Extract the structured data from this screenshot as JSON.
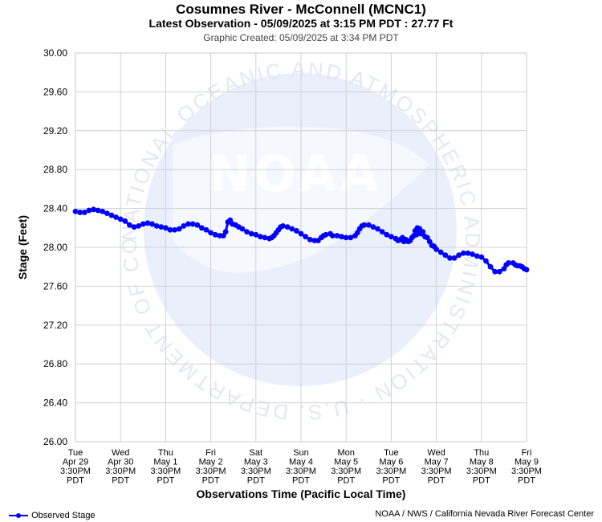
{
  "header": {
    "title": "Cosumnes River - McConnell (MCNC1)",
    "latest": "Latest Observation - 05/09/2025 at 3:15 PM PDT : 27.77 Ft",
    "created": "Graphic Created: 05/09/2025 at 3:34 PM PDT"
  },
  "watermark": {
    "logo_text": "NOAA",
    "ring_text": "NATIONAL OCEANIC AND ATMOSPHERIC ADMINISTRATION · U.S. DEPARTMENT OF COMMERCE"
  },
  "legend": {
    "label": "Observed Stage",
    "color": "#0000ff"
  },
  "credit": "NOAA / NWS / California Nevada River Forecast Center",
  "chart_data": {
    "type": "line",
    "ylabel": "Stage (Feet)",
    "xlabel": "Observations Time (Pacific Local Time)",
    "ylim": [
      26.0,
      30.0
    ],
    "yticks": [
      "26.00",
      "26.40",
      "26.80",
      "27.20",
      "27.60",
      "28.00",
      "28.40",
      "28.80",
      "29.20",
      "29.60",
      "30.00"
    ],
    "xlim_days": [
      0,
      10
    ],
    "xticks": [
      [
        "Tue",
        "Apr 29",
        "3:30PM",
        "PDT"
      ],
      [
        "Wed",
        "Apr 30",
        "3:30PM",
        "PDT"
      ],
      [
        "Thu",
        "May 1",
        "3:30PM",
        "PDT"
      ],
      [
        "Fri",
        "May 2",
        "3:30PM",
        "PDT"
      ],
      [
        "Sat",
        "May 3",
        "3:30PM",
        "PDT"
      ],
      [
        "Sun",
        "May 4",
        "3:30PM",
        "PDT"
      ],
      [
        "Mon",
        "May 5",
        "3:30PM",
        "PDT"
      ],
      [
        "Tue",
        "May 6",
        "3:30PM",
        "PDT"
      ],
      [
        "Wed",
        "May 7",
        "3:30PM",
        "PDT"
      ],
      [
        "Thu",
        "May 8",
        "3:30PM",
        "PDT"
      ],
      [
        "Fri",
        "May 9",
        "3:30PM",
        "PDT"
      ]
    ],
    "grid": true,
    "series": [
      {
        "name": "Observed Stage",
        "color": "#0000ff",
        "points": [
          [
            0.0,
            28.37
          ],
          [
            0.1,
            28.36
          ],
          [
            0.2,
            28.36
          ],
          [
            0.3,
            28.38
          ],
          [
            0.4,
            28.39
          ],
          [
            0.5,
            28.38
          ],
          [
            0.6,
            28.37
          ],
          [
            0.7,
            28.35
          ],
          [
            0.8,
            28.33
          ],
          [
            0.9,
            28.31
          ],
          [
            1.0,
            28.29
          ],
          [
            1.1,
            28.27
          ],
          [
            1.2,
            28.23
          ],
          [
            1.3,
            28.21
          ],
          [
            1.4,
            28.22
          ],
          [
            1.5,
            28.24
          ],
          [
            1.6,
            28.25
          ],
          [
            1.7,
            28.24
          ],
          [
            1.8,
            28.22
          ],
          [
            1.9,
            28.21
          ],
          [
            2.0,
            28.2
          ],
          [
            2.1,
            28.18
          ],
          [
            2.2,
            28.18
          ],
          [
            2.3,
            28.19
          ],
          [
            2.4,
            28.22
          ],
          [
            2.5,
            28.24
          ],
          [
            2.6,
            28.24
          ],
          [
            2.7,
            28.23
          ],
          [
            2.8,
            28.2
          ],
          [
            2.9,
            28.18
          ],
          [
            3.0,
            28.15
          ],
          [
            3.1,
            28.13
          ],
          [
            3.2,
            28.12
          ],
          [
            3.28,
            28.12
          ],
          [
            3.33,
            28.16
          ],
          [
            3.38,
            28.26
          ],
          [
            3.43,
            28.28
          ],
          [
            3.48,
            28.24
          ],
          [
            3.55,
            28.23
          ],
          [
            3.62,
            28.21
          ],
          [
            3.7,
            28.19
          ],
          [
            3.8,
            28.16
          ],
          [
            3.9,
            28.14
          ],
          [
            4.0,
            28.13
          ],
          [
            4.1,
            28.11
          ],
          [
            4.2,
            28.1
          ],
          [
            4.3,
            28.09
          ],
          [
            4.35,
            28.1
          ],
          [
            4.4,
            28.12
          ],
          [
            4.45,
            28.15
          ],
          [
            4.5,
            28.18
          ],
          [
            4.55,
            28.21
          ],
          [
            4.6,
            28.22
          ],
          [
            4.7,
            28.21
          ],
          [
            4.8,
            28.19
          ],
          [
            4.9,
            28.17
          ],
          [
            5.0,
            28.14
          ],
          [
            5.1,
            28.11
          ],
          [
            5.2,
            28.08
          ],
          [
            5.3,
            28.07
          ],
          [
            5.38,
            28.07
          ],
          [
            5.45,
            28.1
          ],
          [
            5.5,
            28.12
          ],
          [
            5.55,
            28.13
          ],
          [
            5.65,
            28.14
          ],
          [
            5.7,
            28.12
          ],
          [
            5.8,
            28.12
          ],
          [
            5.9,
            28.11
          ],
          [
            6.0,
            28.1
          ],
          [
            6.1,
            28.1
          ],
          [
            6.2,
            28.12
          ],
          [
            6.25,
            28.15
          ],
          [
            6.3,
            28.19
          ],
          [
            6.35,
            28.22
          ],
          [
            6.4,
            28.23
          ],
          [
            6.5,
            28.23
          ],
          [
            6.6,
            28.21
          ],
          [
            6.7,
            28.19
          ],
          [
            6.8,
            28.16
          ],
          [
            6.9,
            28.13
          ],
          [
            7.0,
            28.11
          ],
          [
            7.1,
            28.09
          ],
          [
            7.15,
            28.07
          ],
          [
            7.2,
            28.08
          ],
          [
            7.25,
            28.1
          ],
          [
            7.28,
            28.06
          ],
          [
            7.32,
            28.08
          ],
          [
            7.38,
            28.06
          ],
          [
            7.42,
            28.07
          ],
          [
            7.46,
            28.1
          ],
          [
            7.5,
            28.12
          ],
          [
            7.53,
            28.17
          ],
          [
            7.56,
            28.13
          ],
          [
            7.58,
            28.2
          ],
          [
            7.6,
            28.16
          ],
          [
            7.63,
            28.19
          ],
          [
            7.66,
            28.14
          ],
          [
            7.7,
            28.16
          ],
          [
            7.75,
            28.11
          ],
          [
            7.8,
            28.1
          ],
          [
            7.85,
            28.06
          ],
          [
            7.9,
            28.02
          ],
          [
            7.95,
            28.01
          ],
          [
            8.0,
            27.98
          ],
          [
            8.1,
            27.95
          ],
          [
            8.2,
            27.92
          ],
          [
            8.3,
            27.89
          ],
          [
            8.4,
            27.89
          ],
          [
            8.5,
            27.92
          ],
          [
            8.6,
            27.94
          ],
          [
            8.7,
            27.94
          ],
          [
            8.8,
            27.93
          ],
          [
            8.9,
            27.91
          ],
          [
            9.0,
            27.9
          ],
          [
            9.1,
            27.86
          ],
          [
            9.2,
            27.8
          ],
          [
            9.3,
            27.75
          ],
          [
            9.4,
            27.75
          ],
          [
            9.5,
            27.78
          ],
          [
            9.55,
            27.82
          ],
          [
            9.6,
            27.84
          ],
          [
            9.7,
            27.84
          ],
          [
            9.75,
            27.82
          ],
          [
            9.8,
            27.81
          ],
          [
            9.85,
            27.81
          ],
          [
            9.9,
            27.8
          ],
          [
            9.95,
            27.78
          ],
          [
            10.0,
            27.77
          ]
        ]
      }
    ]
  }
}
